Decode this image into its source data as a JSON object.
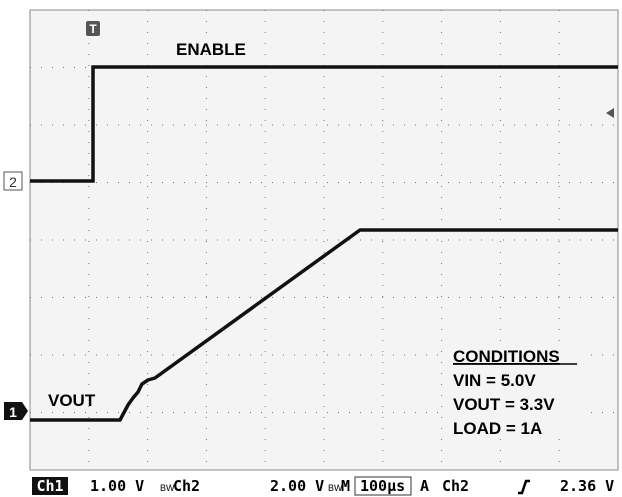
{
  "markers": {
    "trigger": "T",
    "ch2": "2",
    "ch1": "1"
  },
  "labels": {
    "enable": "ENABLE",
    "vout": "VOUT"
  },
  "conditions": {
    "heading": "CONDITIONS",
    "lines": [
      "VIN = 5.0V",
      "VOUT = 3.3V",
      "LOAD = 1A"
    ]
  },
  "status_bar": {
    "ch1": "Ch1",
    "ch1_scale": "1.00 V",
    "bw1": "BW",
    "ch2": "Ch2",
    "ch2_scale": "2.00 V",
    "bw2": "BW",
    "timebase_prefix": "M",
    "timebase": "100µs",
    "trigger_mode": "A",
    "trigger_source": "Ch2",
    "trigger_level": "2.36 V"
  }
}
